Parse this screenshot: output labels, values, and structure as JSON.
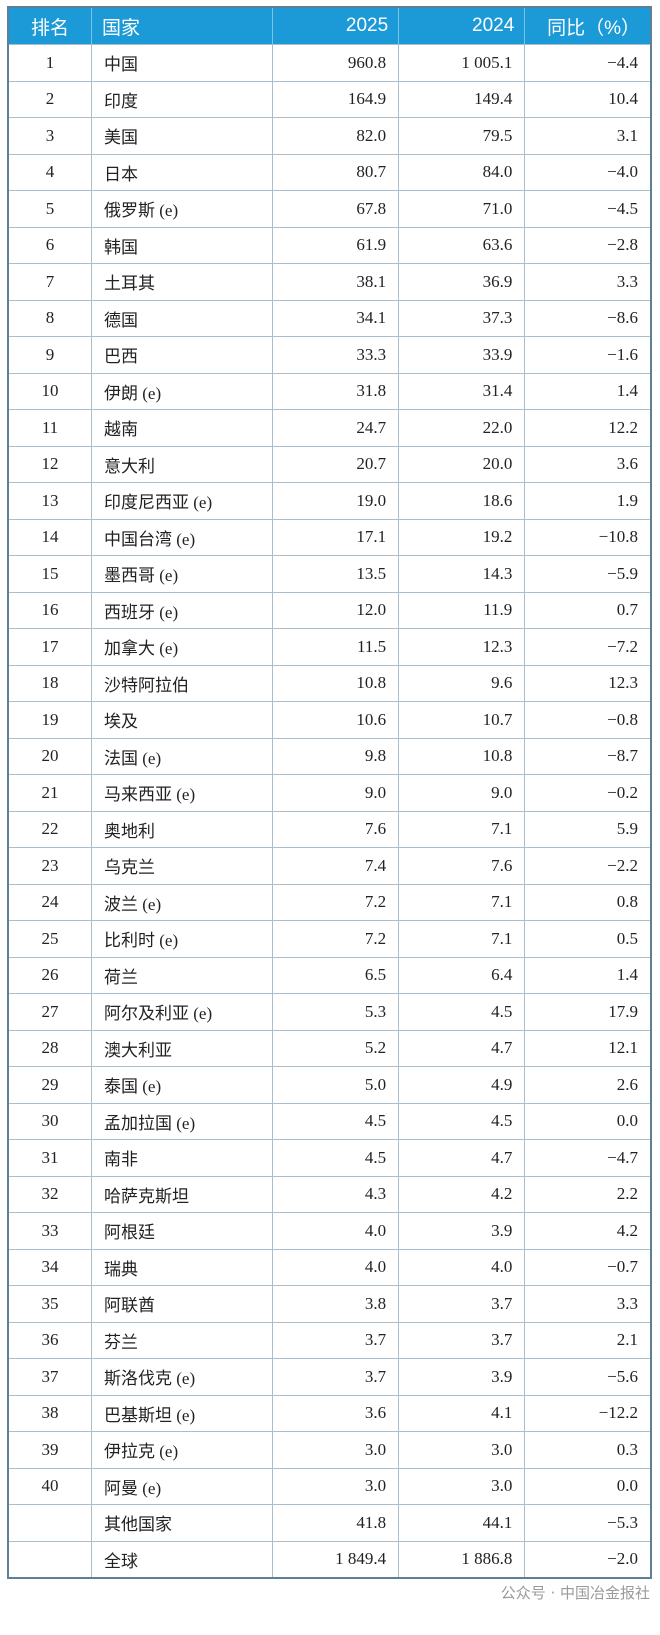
{
  "header": {
    "rank": "排名",
    "country": "国家",
    "y2025": "2025",
    "y2024": "2024",
    "yoy": "同比（%）"
  },
  "rows": [
    [
      "1",
      "中国",
      "960.8",
      "1 005.1",
      "−4.4"
    ],
    [
      "2",
      "印度",
      "164.9",
      "149.4",
      "10.4"
    ],
    [
      "3",
      "美国",
      "82.0",
      "79.5",
      "3.1"
    ],
    [
      "4",
      "日本",
      "80.7",
      "84.0",
      "−4.0"
    ],
    [
      "5",
      "俄罗斯 (e)",
      "67.8",
      "71.0",
      "−4.5"
    ],
    [
      "6",
      "韩国",
      "61.9",
      "63.6",
      "−2.8"
    ],
    [
      "7",
      "土耳其",
      "38.1",
      "36.9",
      "3.3"
    ],
    [
      "8",
      "德国",
      "34.1",
      "37.3",
      "−8.6"
    ],
    [
      "9",
      "巴西",
      "33.3",
      "33.9",
      "−1.6"
    ],
    [
      "10",
      "伊朗 (e)",
      "31.8",
      "31.4",
      "1.4"
    ],
    [
      "11",
      "越南",
      "24.7",
      "22.0",
      "12.2"
    ],
    [
      "12",
      "意大利",
      "20.7",
      "20.0",
      "3.6"
    ],
    [
      "13",
      "印度尼西亚 (e)",
      "19.0",
      "18.6",
      "1.9"
    ],
    [
      "14",
      "中国台湾 (e)",
      "17.1",
      "19.2",
      "−10.8"
    ],
    [
      "15",
      "墨西哥 (e)",
      "13.5",
      "14.3",
      "−5.9"
    ],
    [
      "16",
      "西班牙 (e)",
      "12.0",
      "11.9",
      "0.7"
    ],
    [
      "17",
      "加拿大 (e)",
      "11.5",
      "12.3",
      "−7.2"
    ],
    [
      "18",
      "沙特阿拉伯",
      "10.8",
      "9.6",
      "12.3"
    ],
    [
      "19",
      "埃及",
      "10.6",
      "10.7",
      "−0.8"
    ],
    [
      "20",
      "法国 (e)",
      "9.8",
      "10.8",
      "−8.7"
    ],
    [
      "21",
      "马来西亚 (e)",
      "9.0",
      "9.0",
      "−0.2"
    ],
    [
      "22",
      "奥地利",
      "7.6",
      "7.1",
      "5.9"
    ],
    [
      "23",
      "乌克兰",
      "7.4",
      "7.6",
      "−2.2"
    ],
    [
      "24",
      "波兰 (e)",
      "7.2",
      "7.1",
      "0.8"
    ],
    [
      "25",
      "比利时 (e)",
      "7.2",
      "7.1",
      "0.5"
    ],
    [
      "26",
      "荷兰",
      "6.5",
      "6.4",
      "1.4"
    ],
    [
      "27",
      "阿尔及利亚 (e)",
      "5.3",
      "4.5",
      "17.9"
    ],
    [
      "28",
      "澳大利亚",
      "5.2",
      "4.7",
      "12.1"
    ],
    [
      "29",
      "泰国 (e)",
      "5.0",
      "4.9",
      "2.6"
    ],
    [
      "30",
      "孟加拉国 (e)",
      "4.5",
      "4.5",
      "0.0"
    ],
    [
      "31",
      "南非",
      "4.5",
      "4.7",
      "−4.7"
    ],
    [
      "32",
      "哈萨克斯坦",
      "4.3",
      "4.2",
      "2.2"
    ],
    [
      "33",
      "阿根廷",
      "4.0",
      "3.9",
      "4.2"
    ],
    [
      "34",
      "瑞典",
      "4.0",
      "4.0",
      "−0.7"
    ],
    [
      "35",
      "阿联酋",
      "3.8",
      "3.7",
      "3.3"
    ],
    [
      "36",
      "芬兰",
      "3.7",
      "3.7",
      "2.1"
    ],
    [
      "37",
      "斯洛伐克 (e)",
      "3.7",
      "3.9",
      "−5.6"
    ],
    [
      "38",
      "巴基斯坦 (e)",
      "3.6",
      "4.1",
      "−12.2"
    ],
    [
      "39",
      "伊拉克 (e)",
      "3.0",
      "3.0",
      "0.3"
    ],
    [
      "40",
      "阿曼 (e)",
      "3.0",
      "3.0",
      "0.0"
    ],
    [
      "",
      "其他国家",
      "41.8",
      "44.1",
      "−5.3"
    ],
    [
      "",
      "全球",
      "1 849.4",
      "1 886.8",
      "−2.0"
    ]
  ],
  "watermark": "公众号 · 中国冶金报社",
  "colors": {
    "header_bg": "#1b9ad7",
    "border": "#a9bfcc"
  }
}
